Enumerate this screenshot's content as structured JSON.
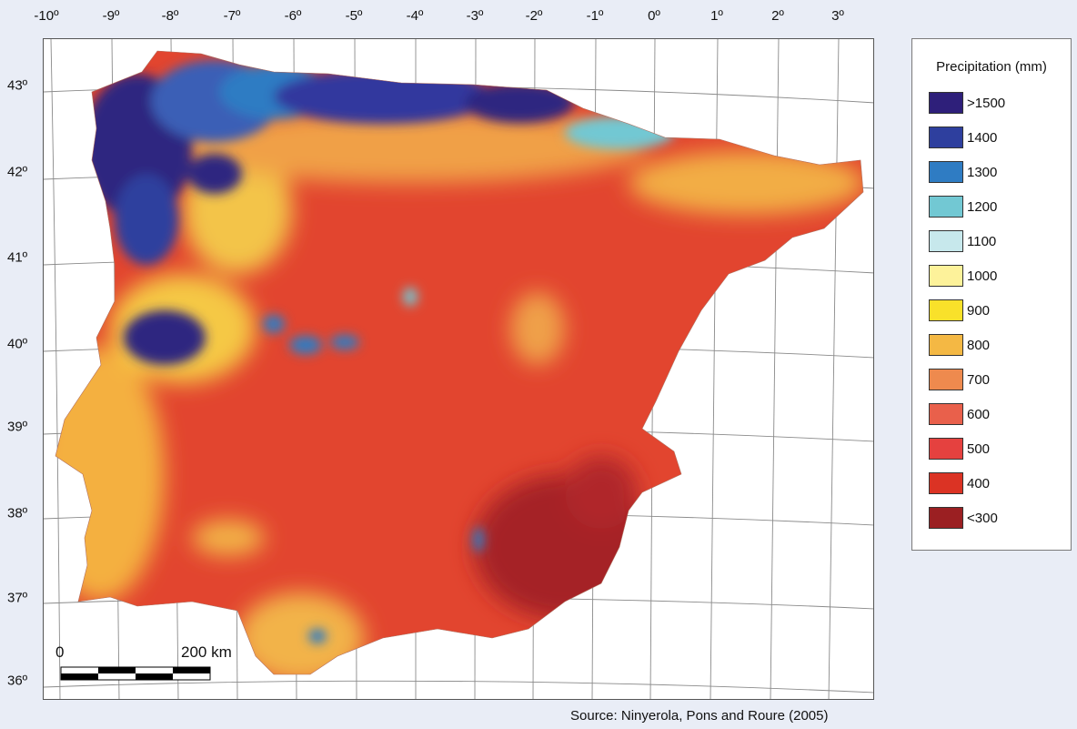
{
  "map": {
    "longitude_labels": [
      "-10º",
      "-9º",
      "-8º",
      "-7º",
      "-6º",
      "-5º",
      "-4º",
      "-3º",
      "-2º",
      "-1º",
      "0º",
      "1º",
      "2º",
      "3º"
    ],
    "latitude_labels": [
      "43º",
      "42º",
      "41º",
      "40º",
      "39º",
      "38º",
      "37º",
      "36º"
    ],
    "scale_bar": {
      "start_label": "0",
      "end_label": "200 km"
    }
  },
  "legend": {
    "title": "Precipitation (mm)",
    "items": [
      {
        "label": ">1500",
        "color": "#2e1f7a"
      },
      {
        "label": "1400",
        "color": "#2e3f9e"
      },
      {
        "label": "1300",
        "color": "#2f7cc3"
      },
      {
        "label": "1200",
        "color": "#72c8d3"
      },
      {
        "label": "1100",
        "color": "#c7e8ec"
      },
      {
        "label": "1000",
        "color": "#fdf29a"
      },
      {
        "label": "900",
        "color": "#f9e12a"
      },
      {
        "label": "800",
        "color": "#f4b844"
      },
      {
        "label": "700",
        "color": "#ee8a4e"
      },
      {
        "label": "600",
        "color": "#e9604b"
      },
      {
        "label": "500",
        "color": "#e5413f"
      },
      {
        "label": "400",
        "color": "#db3324"
      },
      {
        "label": "<300",
        "color": "#9b1f22"
      }
    ]
  },
  "source": "Source: Ninyerola, Pons and Roure (2005)"
}
